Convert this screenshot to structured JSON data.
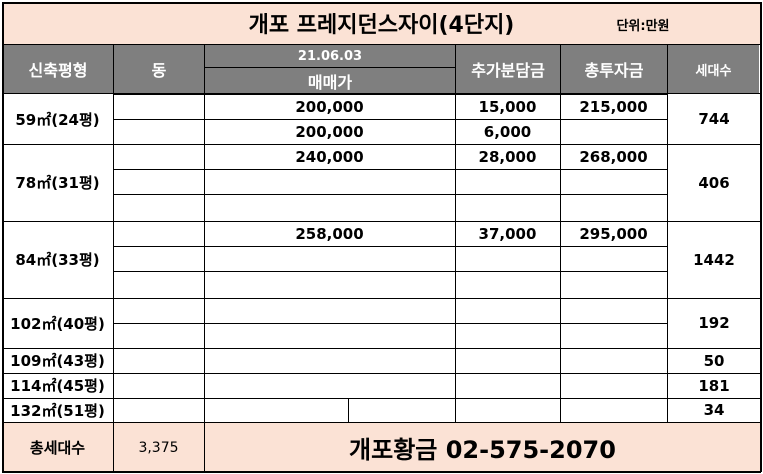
{
  "title": "개포 프레지던스자이(4단지)",
  "unit": "단위:만원",
  "headers": {
    "type": "신축평형",
    "building": "동",
    "date": "21.06.03",
    "sale_price": "매매가",
    "extra_payment": "추가분담금",
    "total_investment": "총투자금",
    "households": "세대수"
  },
  "groups": [
    {
      "type": "59㎡(24평)",
      "households": "744",
      "rows": [
        {
          "price": "200,000",
          "extra": "15,000",
          "total": "215,000"
        },
        {
          "price": "200,000",
          "extra": "6,000",
          "total": ""
        }
      ]
    },
    {
      "type": "78㎡(31평)",
      "households": "406",
      "rows": [
        {
          "price": "240,000",
          "extra": "28,000",
          "total": "268,000"
        },
        {
          "price": "",
          "extra": "",
          "total": ""
        },
        {
          "price": "",
          "extra": "",
          "total": ""
        }
      ]
    },
    {
      "type": "84㎡(33평)",
      "households": "1442",
      "rows": [
        {
          "price": "258,000",
          "extra": "37,000",
          "total": "295,000"
        },
        {
          "price": "",
          "extra": "",
          "total": ""
        },
        {
          "price": "",
          "extra": "",
          "total": ""
        }
      ]
    },
    {
      "type": "102㎡(40평)",
      "households": "192",
      "rows": [
        {
          "price": "",
          "extra": "",
          "total": ""
        },
        {
          "price": "",
          "extra": "",
          "total": ""
        }
      ]
    },
    {
      "type": "109㎡(43평)",
      "households": "50",
      "rows": [
        {
          "price": "",
          "extra": "",
          "total": ""
        }
      ]
    },
    {
      "type": "114㎡(45평)",
      "households": "181",
      "rows": [
        {
          "price": "",
          "extra": "",
          "total": ""
        }
      ]
    },
    {
      "type": "132㎡(51평)",
      "households": "34",
      "rows": [
        {
          "price": "",
          "extra": "",
          "total": ""
        }
      ]
    }
  ],
  "footer": {
    "total_label": "총세대수",
    "total_value": "3,375",
    "contact": "개포황금 02-575-2070"
  },
  "colors": {
    "title_bg": "#fbe2d5",
    "header_bg": "#7f7f7f",
    "header_text": "#ffffff",
    "border": "#000000"
  }
}
